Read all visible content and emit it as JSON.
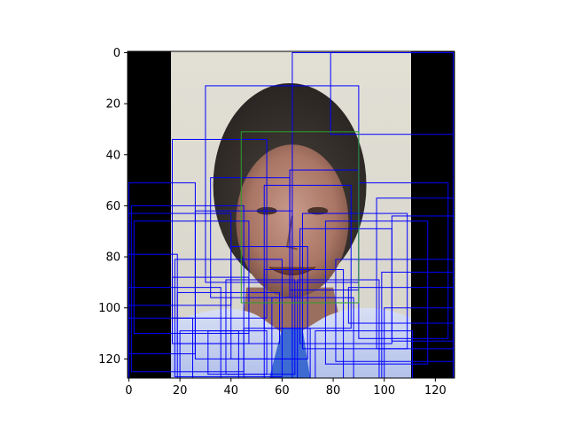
{
  "chart_data": {
    "type": "image_with_boxes",
    "image": {
      "width": 128,
      "height": 128,
      "description_regions": {
        "padding_color": "#000000",
        "photo_x": [
          16.5,
          110.5
        ],
        "background_color": "#dcdad0",
        "hair_color": "#3b3632",
        "face_color": "#b9887a",
        "shirt_color": "#c8d3ef",
        "tie_color": "#3d6bd1"
      }
    },
    "xlim": [
      -0.5,
      127.5
    ],
    "ylim": [
      127.5,
      -0.5
    ],
    "x_ticks": [
      0,
      20,
      40,
      60,
      80,
      100,
      120
    ],
    "y_ticks": [
      0,
      20,
      40,
      60,
      80,
      100,
      120
    ],
    "x_tick_labels": [
      "0",
      "20",
      "40",
      "60",
      "80",
      "100",
      "120"
    ],
    "y_tick_labels": [
      "0",
      "20",
      "40",
      "60",
      "80",
      "100",
      "120"
    ],
    "ground_truth_box": {
      "color": "#2ca02c",
      "x0": 44,
      "y0": 31,
      "x1": 90,
      "y1": 98
    },
    "box_color": "#0000ff",
    "predicted_boxes": [
      [
        64,
        0,
        127,
        128
      ],
      [
        79,
        0,
        127,
        32
      ],
      [
        30,
        13,
        90,
        90
      ],
      [
        17,
        34,
        54,
        104
      ],
      [
        63,
        46,
        90,
        93
      ],
      [
        32,
        49,
        63,
        96
      ],
      [
        0,
        51,
        26,
        118
      ],
      [
        53,
        52,
        87,
        108
      ],
      [
        90,
        51,
        125,
        112
      ],
      [
        97,
        57,
        127,
        116
      ],
      [
        1,
        60,
        45,
        125
      ],
      [
        26,
        62,
        64,
        120
      ],
      [
        68,
        63,
        109,
        116
      ],
      [
        103,
        64,
        127,
        113
      ],
      [
        0,
        63,
        40,
        99
      ],
      [
        2,
        66,
        47,
        110
      ],
      [
        77,
        66,
        117,
        122
      ],
      [
        67,
        69,
        103,
        114
      ],
      [
        40,
        76,
        70,
        120
      ],
      [
        0,
        79,
        19,
        128
      ],
      [
        18,
        81,
        60,
        127
      ],
      [
        53,
        85,
        84,
        129
      ],
      [
        81,
        81,
        127,
        121
      ],
      [
        99,
        86,
        127,
        128
      ],
      [
        17,
        88,
        47,
        114
      ],
      [
        38,
        89,
        65,
        126
      ],
      [
        66,
        89,
        98,
        128
      ],
      [
        0,
        92,
        36,
        128
      ],
      [
        86,
        92,
        127,
        106
      ],
      [
        19,
        94,
        59,
        114
      ],
      [
        56,
        96,
        88,
        128
      ],
      [
        0,
        104,
        25,
        128
      ],
      [
        100,
        100,
        127,
        130
      ],
      [
        20,
        109,
        43,
        129
      ],
      [
        45,
        108,
        71,
        130
      ],
      [
        31,
        109,
        54,
        126
      ],
      [
        73,
        109,
        111,
        131
      ]
    ]
  }
}
